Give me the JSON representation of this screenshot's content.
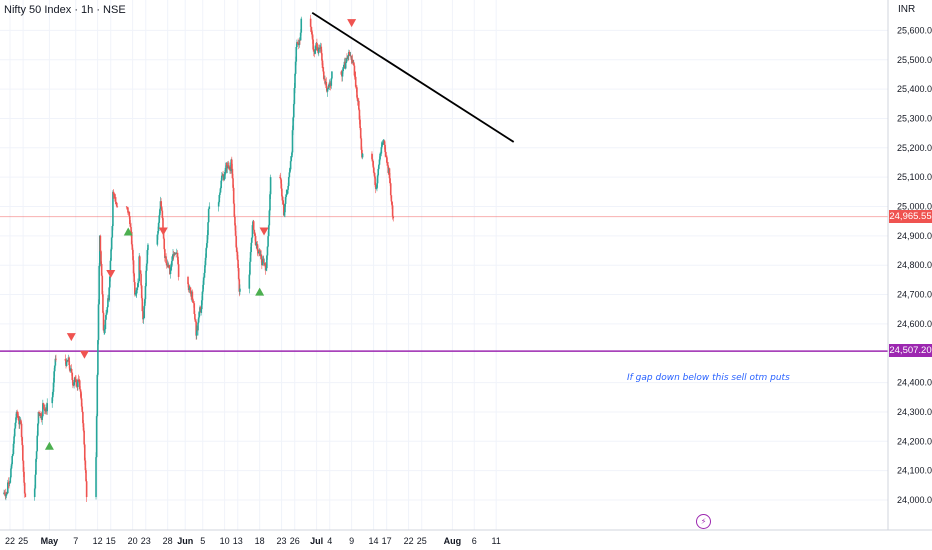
{
  "header": {
    "title": "Nifty 50 Index · 1h · NSE",
    "currency": "INR"
  },
  "annotation": {
    "text": "If gap down below this sell otm puts",
    "color": "#2962ff"
  },
  "colors": {
    "up": "#26a69a",
    "down": "#ef5350",
    "support": "#9c27b0",
    "price_line": "#ef5350",
    "trendline": "#000000",
    "grid": "#f0f3fa"
  },
  "icons": {
    "flash": "lightning-icon"
  },
  "price_tag": {
    "label": "24,965.55",
    "value": 24965.55
  },
  "support_tag": {
    "label": "24,507.20",
    "value": 24507.2
  },
  "chart_data": {
    "type": "candlestick",
    "ylim": [
      23900,
      25700
    ],
    "y_ticks": [
      {
        "v": 24000,
        "label": "24,000.00"
      },
      {
        "v": 24100,
        "label": "24,100.00"
      },
      {
        "v": 24200,
        "label": "24,200.00"
      },
      {
        "v": 24300,
        "label": "24,300.00"
      },
      {
        "v": 24400,
        "label": "24,400.00"
      },
      {
        "v": 24600,
        "label": "24,600.00"
      },
      {
        "v": 24700,
        "label": "24,700.00"
      },
      {
        "v": 24800,
        "label": "24,800.00"
      },
      {
        "v": 24900,
        "label": "24,900.00"
      },
      {
        "v": 25000,
        "label": "25,000.00"
      },
      {
        "v": 25100,
        "label": "25,100.00"
      },
      {
        "v": 25200,
        "label": "25,200.00"
      },
      {
        "v": 25300,
        "label": "25,300.00"
      },
      {
        "v": 25400,
        "label": "25,400.00"
      },
      {
        "v": 25500,
        "label": "25,500.00"
      },
      {
        "v": 25600,
        "label": "25,600.00"
      }
    ],
    "x_ticks": [
      {
        "d": "2025-04-22",
        "label": "22",
        "bold": false
      },
      {
        "d": "2025-04-25",
        "label": "25",
        "bold": false
      },
      {
        "d": "2025-05-01",
        "label": "May",
        "bold": true
      },
      {
        "d": "2025-05-07",
        "label": "7",
        "bold": false
      },
      {
        "d": "2025-05-12",
        "label": "12",
        "bold": false
      },
      {
        "d": "2025-05-15",
        "label": "15",
        "bold": false
      },
      {
        "d": "2025-05-20",
        "label": "20",
        "bold": false
      },
      {
        "d": "2025-05-23",
        "label": "23",
        "bold": false
      },
      {
        "d": "2025-05-28",
        "label": "28",
        "bold": false
      },
      {
        "d": "2025-06-01",
        "label": "Jun",
        "bold": true
      },
      {
        "d": "2025-06-05",
        "label": "5",
        "bold": false
      },
      {
        "d": "2025-06-10",
        "label": "10",
        "bold": false
      },
      {
        "d": "2025-06-13",
        "label": "13",
        "bold": false
      },
      {
        "d": "2025-06-18",
        "label": "18",
        "bold": false
      },
      {
        "d": "2025-06-23",
        "label": "23",
        "bold": false
      },
      {
        "d": "2025-06-26",
        "label": "26",
        "bold": false
      },
      {
        "d": "2025-07-01",
        "label": "Jul",
        "bold": true
      },
      {
        "d": "2025-07-04",
        "label": "4",
        "bold": false
      },
      {
        "d": "2025-07-09",
        "label": "9",
        "bold": false
      },
      {
        "d": "2025-07-14",
        "label": "14",
        "bold": false
      },
      {
        "d": "2025-07-17",
        "label": "17",
        "bold": false
      },
      {
        "d": "2025-07-22",
        "label": "22",
        "bold": false
      },
      {
        "d": "2025-07-25",
        "label": "25",
        "bold": false
      },
      {
        "d": "2025-08-01",
        "label": "Aug",
        "bold": true
      },
      {
        "d": "2025-08-06",
        "label": "6",
        "bold": false
      },
      {
        "d": "2025-08-11",
        "label": "11",
        "bold": false
      }
    ],
    "closes": [
      {
        "d": "2025-04-21",
        "v": 24060
      },
      {
        "d": "2025-04-22",
        "v": 24150
      },
      {
        "d": "2025-04-23",
        "v": 24300
      },
      {
        "d": "2025-04-24",
        "v": 24260
      },
      {
        "d": "2025-04-25",
        "v": 24010
      },
      {
        "d": "2025-04-28",
        "v": 24300
      },
      {
        "d": "2025-04-29",
        "v": 24330
      },
      {
        "d": "2025-04-30",
        "v": 24330
      },
      {
        "d": "2025-05-02",
        "v": 24480
      },
      {
        "d": "2025-05-05",
        "v": 24460
      },
      {
        "d": "2025-05-06",
        "v": 24390
      },
      {
        "d": "2025-05-07",
        "v": 24410
      },
      {
        "d": "2025-05-08",
        "v": 24300
      },
      {
        "d": "2025-05-09",
        "v": 24010
      },
      {
        "d": "2025-05-12",
        "v": 24900
      },
      {
        "d": "2025-05-13",
        "v": 24580
      },
      {
        "d": "2025-05-14",
        "v": 24680
      },
      {
        "d": "2025-05-15",
        "v": 25050
      },
      {
        "d": "2025-05-16",
        "v": 25000
      },
      {
        "d": "2025-05-19",
        "v": 24930
      },
      {
        "d": "2025-05-20",
        "v": 24700
      },
      {
        "d": "2025-05-21",
        "v": 24830
      },
      {
        "d": "2025-05-22",
        "v": 24620
      },
      {
        "d": "2025-05-23",
        "v": 24870
      },
      {
        "d": "2025-05-26",
        "v": 25000
      },
      {
        "d": "2025-05-27",
        "v": 24830
      },
      {
        "d": "2025-05-28",
        "v": 24770
      },
      {
        "d": "2025-05-29",
        "v": 24840
      },
      {
        "d": "2025-05-30",
        "v": 24760
      },
      {
        "d": "2025-06-02",
        "v": 24710
      },
      {
        "d": "2025-06-03",
        "v": 24560
      },
      {
        "d": "2025-06-04",
        "v": 24640
      },
      {
        "d": "2025-06-05",
        "v": 24800
      },
      {
        "d": "2025-06-06",
        "v": 25000
      },
      {
        "d": "2025-06-09",
        "v": 25110
      },
      {
        "d": "2025-06-10",
        "v": 25130
      },
      {
        "d": "2025-06-11",
        "v": 25160
      },
      {
        "d": "2025-06-12",
        "v": 24900
      },
      {
        "d": "2025-06-13",
        "v": 24720
      },
      {
        "d": "2025-06-16",
        "v": 24950
      },
      {
        "d": "2025-06-17",
        "v": 24850
      },
      {
        "d": "2025-06-18",
        "v": 24800
      },
      {
        "d": "2025-06-19",
        "v": 24790
      },
      {
        "d": "2025-06-20",
        "v": 25100
      },
      {
        "d": "2025-06-23",
        "v": 24970
      },
      {
        "d": "2025-06-24",
        "v": 25070
      },
      {
        "d": "2025-06-25",
        "v": 25260
      },
      {
        "d": "2025-06-26",
        "v": 25560
      },
      {
        "d": "2025-06-27",
        "v": 25640
      },
      {
        "d": "2025-06-30",
        "v": 25520
      },
      {
        "d": "2025-07-01",
        "v": 25540
      },
      {
        "d": "2025-07-02",
        "v": 25460
      },
      {
        "d": "2025-07-03",
        "v": 25400
      },
      {
        "d": "2025-07-04",
        "v": 25460
      },
      {
        "d": "2025-07-07",
        "v": 25470
      },
      {
        "d": "2025-07-08",
        "v": 25520
      },
      {
        "d": "2025-07-09",
        "v": 25480
      },
      {
        "d": "2025-07-10",
        "v": 25360
      },
      {
        "d": "2025-07-11",
        "v": 25180
      },
      {
        "d": "2025-07-14",
        "v": 25060
      },
      {
        "d": "2025-07-15",
        "v": 25180
      },
      {
        "d": "2025-07-16",
        "v": 25210
      },
      {
        "d": "2025-07-17",
        "v": 25130
      },
      {
        "d": "2025-07-18",
        "v": 24960
      }
    ],
    "trendline": {
      "from": {
        "d": "2025-06-30",
        "v": 25660
      },
      "to": {
        "d": "2025-08-15",
        "v": 25220
      }
    },
    "signals": [
      {
        "type": "sell",
        "d": "2025-05-06",
        "v": 24555
      },
      {
        "type": "sell",
        "d": "2025-05-09",
        "v": 24495
      },
      {
        "type": "buy",
        "d": "2025-05-01",
        "v": 24185
      },
      {
        "type": "sell",
        "d": "2025-05-15",
        "v": 24770
      },
      {
        "type": "buy",
        "d": "2025-05-19",
        "v": 24915
      },
      {
        "type": "sell",
        "d": "2025-05-27",
        "v": 24915
      },
      {
        "type": "sell",
        "d": "2025-06-19",
        "v": 24915
      },
      {
        "type": "buy",
        "d": "2025-06-18",
        "v": 24710
      },
      {
        "type": "sell",
        "d": "2025-07-09",
        "v": 25625
      }
    ]
  }
}
